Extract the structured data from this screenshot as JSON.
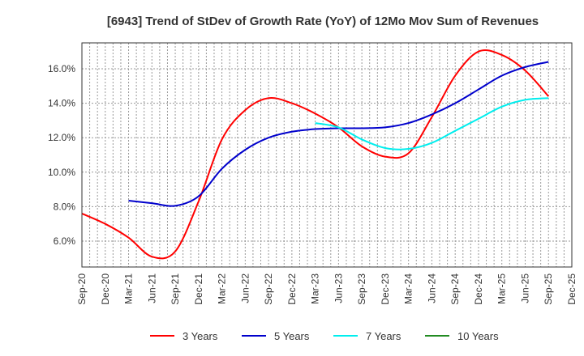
{
  "chart_data": {
    "type": "line",
    "title": "[6943]  Trend of StDev of Growth Rate (YoY) of 12Mo Mov Sum of Revenues",
    "xlabel": "",
    "ylabel": "",
    "x": [
      "Sep-20",
      "Dec-20",
      "Mar-21",
      "Jun-21",
      "Sep-21",
      "Dec-21",
      "Mar-22",
      "Jun-22",
      "Sep-22",
      "Dec-22",
      "Mar-23",
      "Jun-23",
      "Sep-23",
      "Dec-23",
      "Mar-24",
      "Jun-24",
      "Sep-24",
      "Dec-24",
      "Mar-25",
      "Jun-25",
      "Sep-25",
      "Dec-25"
    ],
    "ylim": [
      4.5,
      17.5
    ],
    "yticks": [
      6.0,
      8.0,
      10.0,
      12.0,
      14.0,
      16.0
    ],
    "ytick_labels": [
      "6.0%",
      "8.0%",
      "10.0%",
      "12.0%",
      "14.0%",
      "16.0%"
    ],
    "grid": true,
    "legend_position": "bottom",
    "series": [
      {
        "name": "3 Years",
        "color": "#ff0000",
        "values": [
          7.6,
          7.0,
          6.2,
          5.1,
          5.4,
          8.3,
          11.9,
          13.6,
          14.3,
          14.0,
          13.4,
          12.6,
          11.5,
          10.9,
          11.1,
          13.2,
          15.6,
          17.0,
          16.8,
          15.9,
          14.4,
          null
        ]
      },
      {
        "name": "5 Years",
        "color": "#0000cc",
        "values": [
          null,
          null,
          8.35,
          8.2,
          8.05,
          8.6,
          10.2,
          11.3,
          12.0,
          12.35,
          12.5,
          12.55,
          12.55,
          12.6,
          12.85,
          13.35,
          14.0,
          14.8,
          15.6,
          16.1,
          16.4,
          null
        ]
      },
      {
        "name": "7 Years",
        "color": "#00eeee",
        "values": [
          null,
          null,
          null,
          null,
          null,
          null,
          null,
          null,
          null,
          null,
          12.85,
          12.6,
          11.9,
          11.4,
          11.35,
          11.7,
          12.4,
          13.1,
          13.8,
          14.2,
          14.3,
          null
        ]
      },
      {
        "name": "10 Years",
        "color": "#228b22",
        "values": [
          null,
          null,
          null,
          null,
          null,
          null,
          null,
          null,
          null,
          null,
          null,
          null,
          null,
          null,
          null,
          null,
          null,
          null,
          null,
          null,
          null,
          null
        ]
      }
    ]
  }
}
